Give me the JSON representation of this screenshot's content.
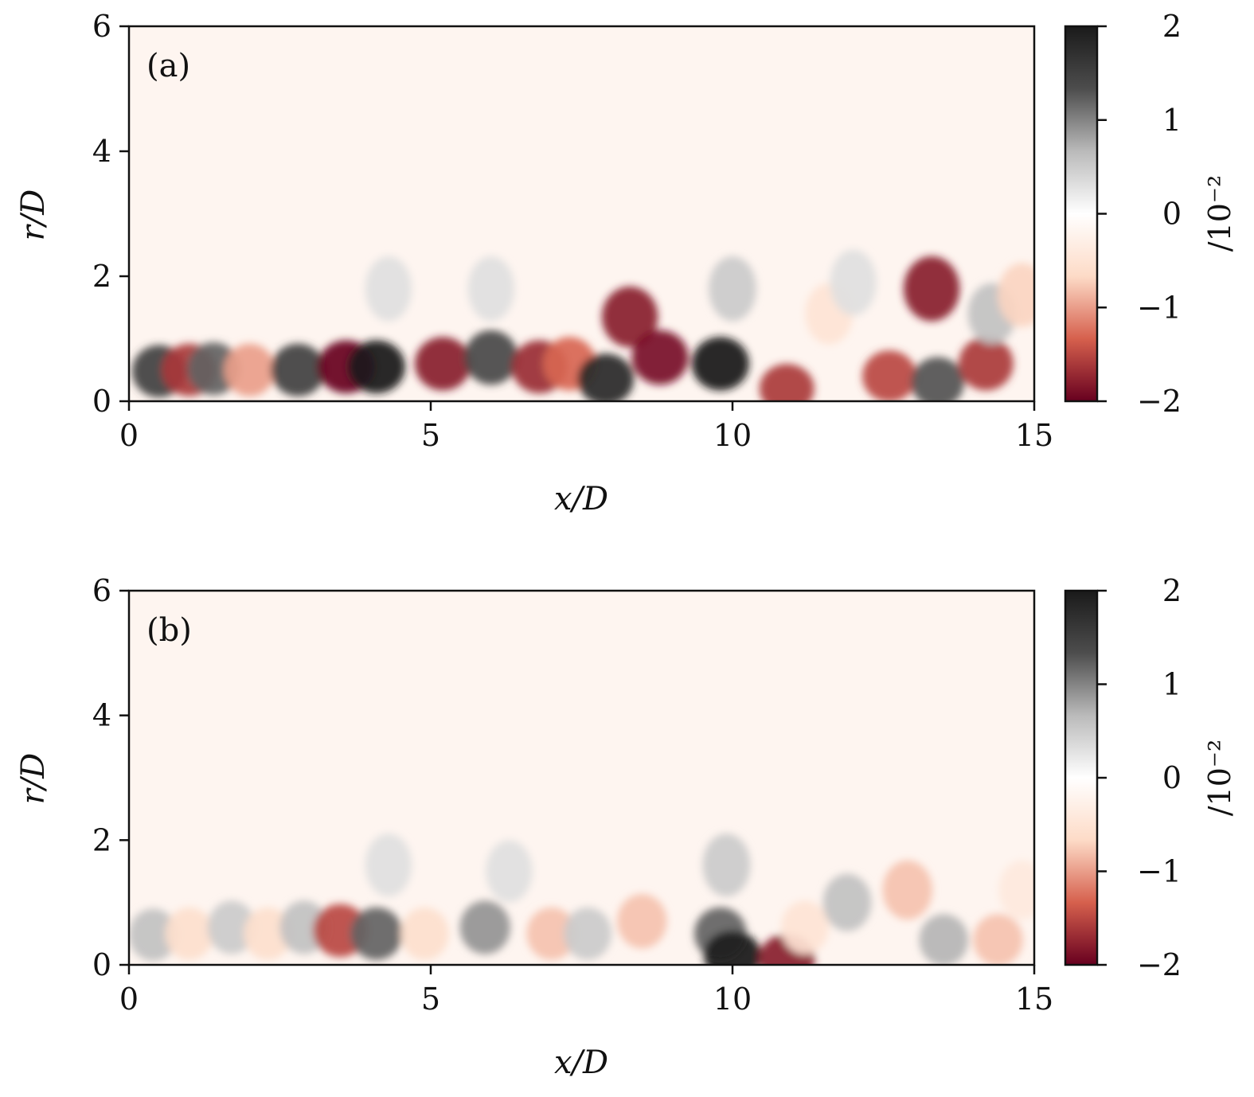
{
  "chart_data": [
    {
      "type": "heatmap",
      "panel_label": "(a)",
      "xlabel": "x/D",
      "ylabel": "r/D",
      "xlim": [
        0,
        15
      ],
      "ylim": [
        0,
        6
      ],
      "xticks": [
        "0",
        "5",
        "10",
        "15"
      ],
      "yticks": [
        "0",
        "2",
        "4",
        "6"
      ],
      "colorbar": {
        "range": [
          -2,
          2
        ],
        "ticks": [
          "2",
          "1",
          "0",
          "−1",
          "−2"
        ],
        "unit": "/10⁻²",
        "colors": [
          "#67001f",
          "#d6604d",
          "#fddbc7",
          "#ffffff",
          "#bababa",
          "#4d4d4d",
          "#1a1a1a"
        ]
      },
      "features": [
        {
          "x": 0.5,
          "r": 0.48,
          "value": 1.5
        },
        {
          "x": 1.0,
          "r": 0.5,
          "value": -1.6
        },
        {
          "x": 1.4,
          "r": 0.52,
          "value": 1.2
        },
        {
          "x": 2.0,
          "r": 0.5,
          "value": -1.0
        },
        {
          "x": 2.8,
          "r": 0.5,
          "value": 1.5
        },
        {
          "x": 3.6,
          "r": 0.55,
          "value": -2.0
        },
        {
          "x": 4.1,
          "r": 0.55,
          "value": 2.0
        },
        {
          "x": 4.3,
          "r": 1.8,
          "value": 0.3
        },
        {
          "x": 5.2,
          "r": 0.6,
          "value": -1.8
        },
        {
          "x": 6.0,
          "r": 0.7,
          "value": 1.4
        },
        {
          "x": 6.0,
          "r": 1.8,
          "value": 0.3
        },
        {
          "x": 6.8,
          "r": 0.55,
          "value": -1.7
        },
        {
          "x": 7.3,
          "r": 0.6,
          "value": -1.3
        },
        {
          "x": 7.9,
          "r": 0.35,
          "value": 1.8
        },
        {
          "x": 8.3,
          "r": 1.35,
          "value": -1.8
        },
        {
          "x": 8.8,
          "r": 0.7,
          "value": -1.9
        },
        {
          "x": 9.8,
          "r": 0.6,
          "value": 2.0
        },
        {
          "x": 10.0,
          "r": 1.8,
          "value": 0.5
        },
        {
          "x": 10.9,
          "r": 0.2,
          "value": -1.6
        },
        {
          "x": 11.6,
          "r": 1.4,
          "value": -0.5
        },
        {
          "x": 12.0,
          "r": 1.9,
          "value": 0.3
        },
        {
          "x": 12.6,
          "r": 0.4,
          "value": -1.5
        },
        {
          "x": 13.3,
          "r": 1.8,
          "value": -1.8
        },
        {
          "x": 13.4,
          "r": 0.3,
          "value": 1.3
        },
        {
          "x": 14.2,
          "r": 0.6,
          "value": -1.6
        },
        {
          "x": 14.3,
          "r": 1.4,
          "value": 0.6
        },
        {
          "x": 14.8,
          "r": 1.7,
          "value": -0.7
        }
      ]
    },
    {
      "type": "heatmap",
      "panel_label": "(b)",
      "xlabel": "x/D",
      "ylabel": "r/D",
      "xlim": [
        0,
        15
      ],
      "ylim": [
        0,
        6
      ],
      "xticks": [
        "0",
        "5",
        "10",
        "15"
      ],
      "yticks": [
        "0",
        "2",
        "4",
        "6"
      ],
      "colorbar": {
        "range": [
          -2,
          2
        ],
        "ticks": [
          "2",
          "1",
          "0",
          "−1",
          "−2"
        ],
        "unit": "/10⁻²",
        "colors": [
          "#67001f",
          "#d6604d",
          "#fddbc7",
          "#ffffff",
          "#bababa",
          "#4d4d4d",
          "#1a1a1a"
        ]
      },
      "features": [
        {
          "x": 0.4,
          "r": 0.48,
          "value": 0.6
        },
        {
          "x": 1.0,
          "r": 0.5,
          "value": -0.6
        },
        {
          "x": 1.7,
          "r": 0.6,
          "value": 0.5
        },
        {
          "x": 2.3,
          "r": 0.5,
          "value": -0.6
        },
        {
          "x": 2.9,
          "r": 0.6,
          "value": 0.6
        },
        {
          "x": 3.5,
          "r": 0.55,
          "value": -1.5
        },
        {
          "x": 4.1,
          "r": 0.5,
          "value": 1.2
        },
        {
          "x": 4.3,
          "r": 1.6,
          "value": 0.3
        },
        {
          "x": 4.9,
          "r": 0.5,
          "value": -0.6
        },
        {
          "x": 5.9,
          "r": 0.6,
          "value": 0.9
        },
        {
          "x": 6.3,
          "r": 1.5,
          "value": 0.3
        },
        {
          "x": 7.0,
          "r": 0.5,
          "value": -0.8
        },
        {
          "x": 7.6,
          "r": 0.5,
          "value": 0.5
        },
        {
          "x": 8.5,
          "r": 0.7,
          "value": -0.8
        },
        {
          "x": 9.8,
          "r": 0.5,
          "value": 1.2
        },
        {
          "x": 10.0,
          "r": 0.15,
          "value": 2.0
        },
        {
          "x": 9.9,
          "r": 1.6,
          "value": 0.5
        },
        {
          "x": 10.9,
          "r": 0.1,
          "value": -1.8
        },
        {
          "x": 11.2,
          "r": 0.6,
          "value": -0.5
        },
        {
          "x": 11.9,
          "r": 1.0,
          "value": 0.6
        },
        {
          "x": 12.9,
          "r": 1.2,
          "value": -0.8
        },
        {
          "x": 13.5,
          "r": 0.4,
          "value": 0.7
        },
        {
          "x": 14.4,
          "r": 0.4,
          "value": -0.8
        },
        {
          "x": 14.8,
          "r": 1.2,
          "value": -0.4
        }
      ]
    }
  ]
}
